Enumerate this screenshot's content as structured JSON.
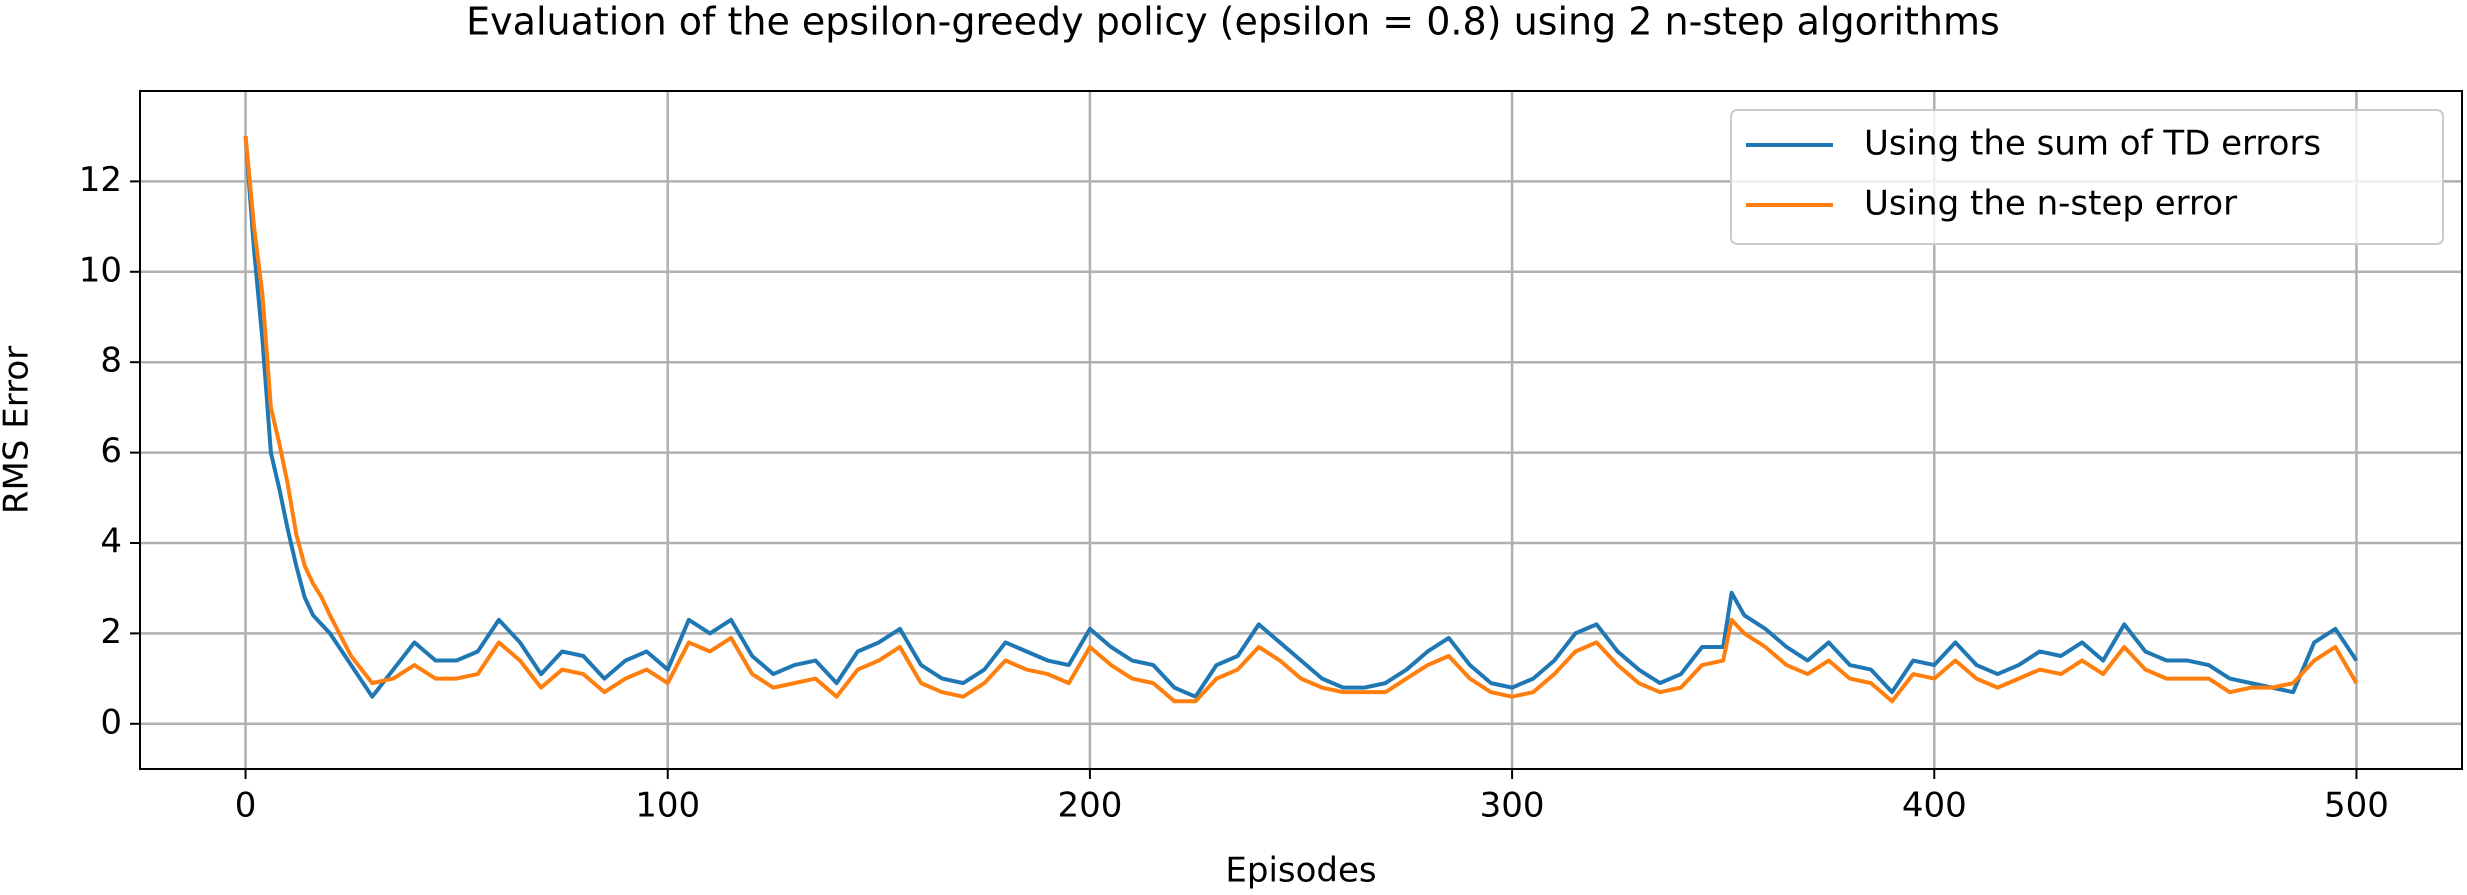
{
  "chart_data": {
    "type": "line",
    "title": "Evaluation of the epsilon-greedy policy (epsilon = 0.8) using 2 n-step algorithms",
    "xlabel": "Episodes",
    "ylabel": "RMS Error",
    "x": [
      0,
      2,
      4,
      6,
      8,
      10,
      12,
      14,
      16,
      18,
      20,
      25,
      30,
      35,
      40,
      45,
      50,
      55,
      60,
      65,
      70,
      75,
      80,
      85,
      90,
      95,
      100,
      105,
      110,
      115,
      120,
      125,
      130,
      135,
      140,
      145,
      150,
      155,
      160,
      165,
      170,
      175,
      180,
      185,
      190,
      195,
      200,
      205,
      210,
      215,
      220,
      225,
      230,
      235,
      240,
      245,
      250,
      255,
      260,
      265,
      270,
      275,
      280,
      285,
      290,
      295,
      300,
      305,
      310,
      315,
      320,
      325,
      330,
      335,
      340,
      345,
      350,
      352,
      355,
      360,
      365,
      370,
      375,
      380,
      385,
      390,
      395,
      400,
      405,
      410,
      415,
      420,
      425,
      430,
      435,
      440,
      445,
      450,
      455,
      460,
      465,
      470,
      475,
      480,
      485,
      490,
      495,
      500
    ],
    "series": [
      {
        "name": "Using the sum of TD errors",
        "color": "#1f77b4",
        "values": [
          13,
          10.5,
          8.5,
          6,
          5.2,
          4.3,
          3.5,
          2.8,
          2.4,
          2.2,
          2.0,
          1.3,
          0.6,
          1.2,
          1.8,
          1.4,
          1.4,
          1.6,
          2.3,
          1.8,
          1.1,
          1.6,
          1.5,
          1.0,
          1.4,
          1.6,
          1.2,
          2.3,
          2.0,
          2.3,
          1.5,
          1.1,
          1.3,
          1.4,
          0.9,
          1.6,
          1.8,
          2.1,
          1.3,
          1.0,
          0.9,
          1.2,
          1.8,
          1.6,
          1.4,
          1.3,
          2.1,
          1.7,
          1.4,
          1.3,
          0.8,
          0.6,
          1.3,
          1.5,
          2.2,
          1.8,
          1.4,
          1.0,
          0.8,
          0.8,
          0.9,
          1.2,
          1.6,
          1.9,
          1.3,
          0.9,
          0.8,
          1.0,
          1.4,
          2.0,
          2.2,
          1.6,
          1.2,
          0.9,
          1.1,
          1.7,
          1.7,
          2.9,
          2.4,
          2.1,
          1.7,
          1.4,
          1.8,
          1.3,
          1.2,
          0.7,
          1.4,
          1.3,
          1.8,
          1.3,
          1.1,
          1.3,
          1.6,
          1.5,
          1.8,
          1.4,
          2.2,
          1.6,
          1.4,
          1.4,
          1.3,
          1.0,
          0.9,
          0.8,
          0.7,
          1.8,
          2.1,
          1.4
        ]
      },
      {
        "name": "Using the n-step error",
        "color": "#ff7f0e",
        "values": [
          13,
          11,
          9.5,
          7,
          6.2,
          5.3,
          4.2,
          3.5,
          3.1,
          2.8,
          2.4,
          1.5,
          0.9,
          1.0,
          1.3,
          1.0,
          1.0,
          1.1,
          1.8,
          1.4,
          0.8,
          1.2,
          1.1,
          0.7,
          1.0,
          1.2,
          0.9,
          1.8,
          1.6,
          1.9,
          1.1,
          0.8,
          0.9,
          1.0,
          0.6,
          1.2,
          1.4,
          1.7,
          0.9,
          0.7,
          0.6,
          0.9,
          1.4,
          1.2,
          1.1,
          0.9,
          1.7,
          1.3,
          1.0,
          0.9,
          0.5,
          0.5,
          1.0,
          1.2,
          1.7,
          1.4,
          1.0,
          0.8,
          0.7,
          0.7,
          0.7,
          1.0,
          1.3,
          1.5,
          1.0,
          0.7,
          0.6,
          0.7,
          1.1,
          1.6,
          1.8,
          1.3,
          0.9,
          0.7,
          0.8,
          1.3,
          1.4,
          2.3,
          2.0,
          1.7,
          1.3,
          1.1,
          1.4,
          1.0,
          0.9,
          0.5,
          1.1,
          1.0,
          1.4,
          1.0,
          0.8,
          1.0,
          1.2,
          1.1,
          1.4,
          1.1,
          1.7,
          1.2,
          1.0,
          1.0,
          1.0,
          0.7,
          0.8,
          0.8,
          0.9,
          1.4,
          1.7,
          0.9
        ]
      }
    ],
    "xlim": [
      -25,
      525
    ],
    "xticks": [
      0,
      100,
      200,
      300,
      400,
      500
    ],
    "ylim": [
      -1,
      14
    ],
    "yticks": [
      0,
      2,
      4,
      6,
      8,
      10,
      12
    ],
    "grid": true,
    "legend": "upper right"
  }
}
